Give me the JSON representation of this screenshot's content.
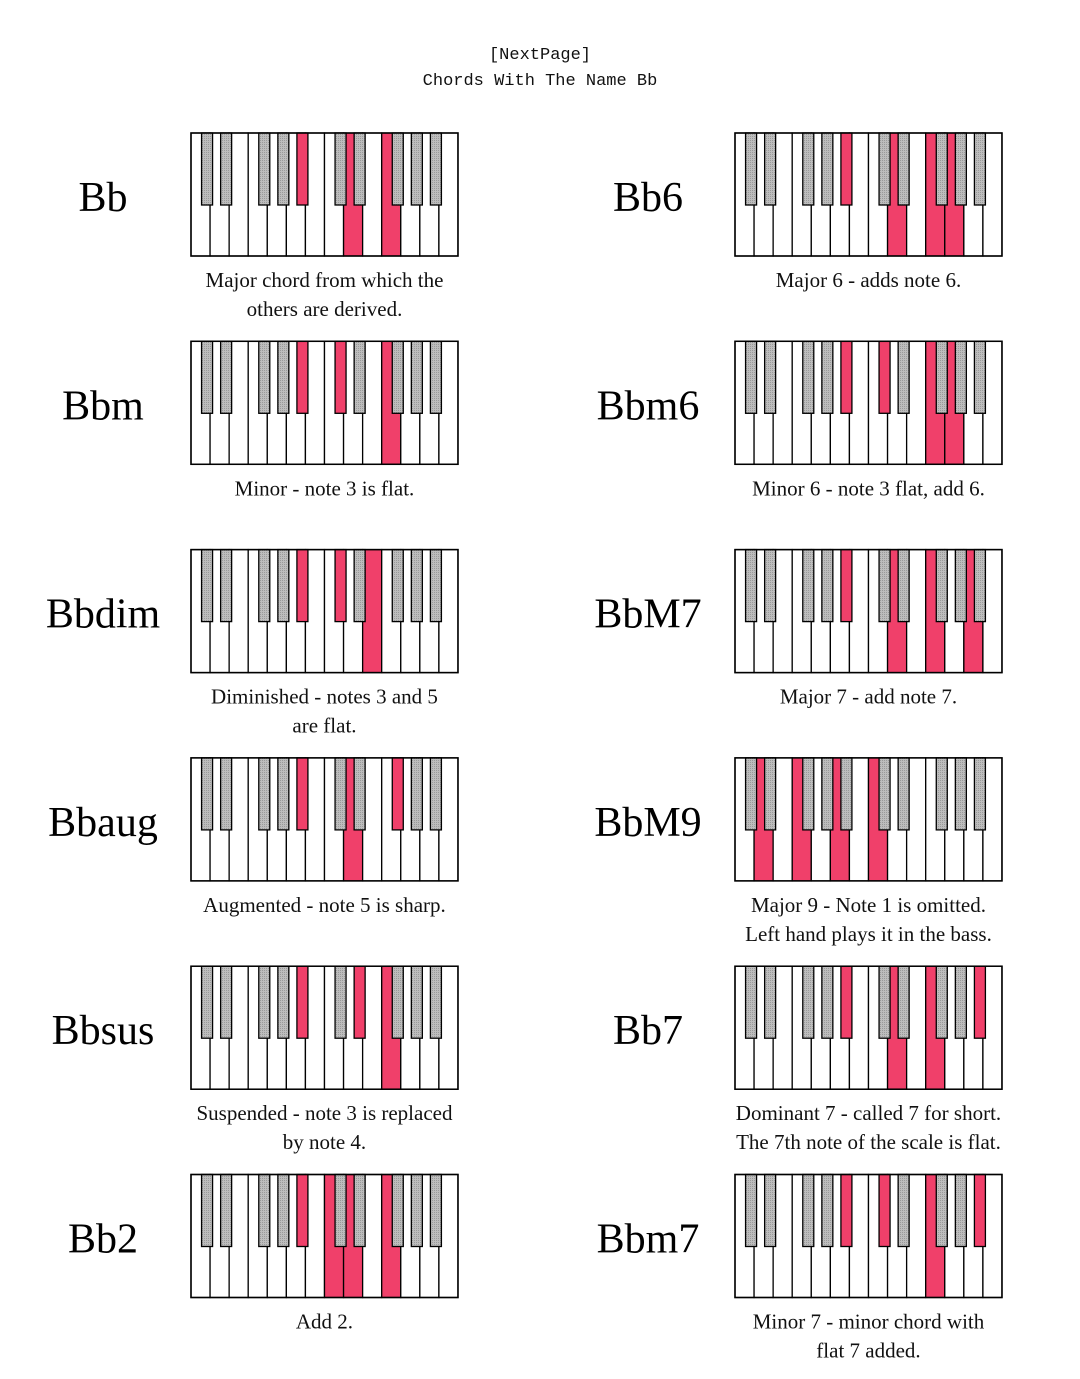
{
  "header": {
    "link": "[NextPage]",
    "title": "Chords With The Name Bb"
  },
  "chords": [
    {
      "name": "Bb",
      "description": [
        "Major chord from which the",
        "others are derived."
      ]
    },
    {
      "name": "Bbm",
      "description": [
        "Minor - note 3 is flat."
      ]
    },
    {
      "name": "Bbdim",
      "description": [
        "Diminished - notes 3 and 5",
        "are flat."
      ]
    },
    {
      "name": "Bbaug",
      "description": [
        "Augmented - note 5 is sharp."
      ]
    },
    {
      "name": "Bbsus",
      "description": [
        "Suspended - note 3 is replaced",
        "by note 4."
      ]
    },
    {
      "name": "Bb2",
      "description": [
        "Add 2."
      ]
    },
    {
      "name": "Bb6",
      "description": [
        "Major 6 - adds note 6."
      ]
    },
    {
      "name": "Bbm6",
      "description": [
        "Minor 6 - note 3 flat, add 6."
      ]
    },
    {
      "name": "BbM7",
      "description": [
        "Major 7 - add note 7."
      ]
    },
    {
      "name": "BbM9",
      "description": [
        "Major 9 - Note 1 is omitted.",
        "Left hand plays it in the bass."
      ]
    },
    {
      "name": "Bb7",
      "description": [
        "Dominant 7 - called 7 for short.",
        "The 7th note of the scale is flat."
      ]
    },
    {
      "name": "Bbm7",
      "description": [
        "Minor 7 - minor chord with",
        "flat 7 added."
      ]
    }
  ]
}
